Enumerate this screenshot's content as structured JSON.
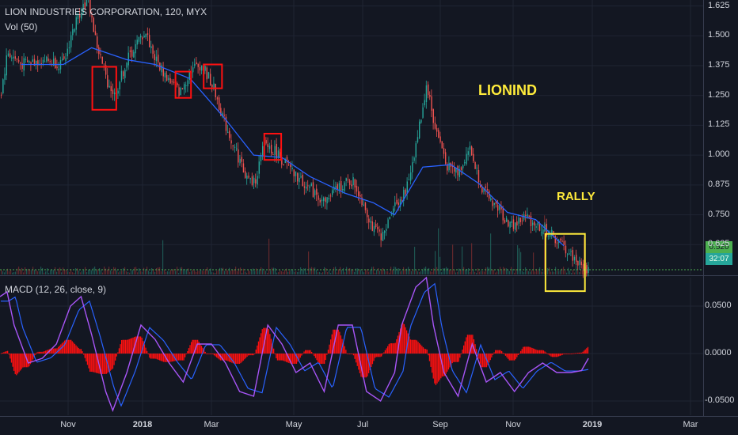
{
  "header": {
    "title": "LION INDUSTRIES CORPORATION, 120, MYX",
    "volume_label": "Vol (50)",
    "macd_label": "MACD (12, 26, close, 9)"
  },
  "annotations": {
    "ticker": "LIONIND",
    "rally": "RALLY"
  },
  "price_tags": {
    "last_price": "0.520",
    "countdown": "32:07"
  },
  "colors": {
    "background": "#131722",
    "up": "#26a69a",
    "down": "#ef5350",
    "ma": "#2962ff",
    "macd": "#a855f7",
    "signal": "#2962ff",
    "histogram": "#ff1010",
    "box_red": "#ff1010",
    "box_yellow": "#ffeb3b",
    "price_line": "#4caf50"
  },
  "chart_data": [
    {
      "type": "candlestick",
      "title": "LION INDUSTRIES CORPORATION, 120, MYX",
      "x_ticks": [
        "Nov",
        "2018",
        "Mar",
        "May",
        "Jul",
        "Sep",
        "Nov",
        "2019",
        "Mar"
      ],
      "y_ticks": [
        "1.625",
        "1.500",
        "1.375",
        "1.250",
        "1.125",
        "1.000",
        "0.875",
        "0.750",
        "0.625"
      ],
      "ylim": [
        0.5,
        1.65
      ],
      "last_price": 0.52,
      "price_path": [
        [
          0,
          1.25
        ],
        [
          0.01,
          1.43
        ],
        [
          0.03,
          1.38
        ],
        [
          0.06,
          1.4
        ],
        [
          0.09,
          1.38
        ],
        [
          0.1,
          1.5
        ],
        [
          0.115,
          1.62
        ],
        [
          0.125,
          1.65
        ],
        [
          0.135,
          1.48
        ],
        [
          0.15,
          1.32
        ],
        [
          0.162,
          1.25
        ],
        [
          0.18,
          1.4
        ],
        [
          0.205,
          1.52
        ],
        [
          0.22,
          1.4
        ],
        [
          0.235,
          1.33
        ],
        [
          0.255,
          1.26
        ],
        [
          0.27,
          1.36
        ],
        [
          0.285,
          1.38
        ],
        [
          0.3,
          1.3
        ],
        [
          0.32,
          1.12
        ],
        [
          0.35,
          0.9
        ],
        [
          0.36,
          0.88
        ],
        [
          0.375,
          1.05
        ],
        [
          0.395,
          1.0
        ],
        [
          0.415,
          0.92
        ],
        [
          0.44,
          0.86
        ],
        [
          0.46,
          0.8
        ],
        [
          0.48,
          0.87
        ],
        [
          0.5,
          0.89
        ],
        [
          0.515,
          0.8
        ],
        [
          0.53,
          0.68
        ],
        [
          0.545,
          0.66
        ],
        [
          0.555,
          0.78
        ],
        [
          0.575,
          0.84
        ],
        [
          0.59,
          1.05
        ],
        [
          0.605,
          1.3
        ],
        [
          0.615,
          1.13
        ],
        [
          0.635,
          0.95
        ],
        [
          0.65,
          0.93
        ],
        [
          0.665,
          1.03
        ],
        [
          0.685,
          0.85
        ],
        [
          0.705,
          0.78
        ],
        [
          0.725,
          0.7
        ],
        [
          0.745,
          0.74
        ],
        [
          0.765,
          0.7
        ],
        [
          0.78,
          0.67
        ],
        [
          0.81,
          0.58
        ],
        [
          0.825,
          0.53
        ],
        [
          0.835,
          0.52
        ]
      ],
      "ma_path": [
        [
          0.03,
          1.38
        ],
        [
          0.09,
          1.38
        ],
        [
          0.13,
          1.45
        ],
        [
          0.18,
          1.4
        ],
        [
          0.22,
          1.38
        ],
        [
          0.27,
          1.32
        ],
        [
          0.32,
          1.15
        ],
        [
          0.36,
          1.0
        ],
        [
          0.4,
          0.99
        ],
        [
          0.44,
          0.91
        ],
        [
          0.49,
          0.84
        ],
        [
          0.53,
          0.8
        ],
        [
          0.56,
          0.75
        ],
        [
          0.6,
          0.95
        ],
        [
          0.64,
          0.96
        ],
        [
          0.68,
          0.88
        ],
        [
          0.72,
          0.76
        ],
        [
          0.76,
          0.73
        ],
        [
          0.8,
          0.62
        ]
      ],
      "red_boxes": [
        {
          "x": [
            0.131,
            0.165
          ],
          "y": [
            1.19,
            1.37
          ]
        },
        {
          "x": [
            0.249,
            0.271
          ],
          "y": [
            1.24,
            1.35
          ]
        },
        {
          "x": [
            0.289,
            0.315
          ],
          "y": [
            1.28,
            1.38
          ]
        },
        {
          "x": [
            0.375,
            0.399
          ],
          "y": [
            0.98,
            1.09
          ]
        },
        {
          "x": [
            0.774,
            0.83
          ],
          "y": [
            0.43,
            0.67
          ]
        }
      ]
    },
    {
      "type": "bar",
      "title": "Vol (50)",
      "note": "volume histogram along bottom of price pane"
    },
    {
      "type": "line",
      "title": "MACD (12, 26, close, 9)",
      "y_ticks": [
        "0.0500",
        "0.0000",
        "-0.0500"
      ],
      "ylim": [
        -0.065,
        0.08
      ],
      "macd_path": [
        [
          0,
          0.06
        ],
        [
          0.01,
          0.065
        ],
        [
          0.02,
          0.03
        ],
        [
          0.04,
          -0.01
        ],
        [
          0.06,
          -0.005
        ],
        [
          0.08,
          0.01
        ],
        [
          0.1,
          0.05
        ],
        [
          0.115,
          0.06
        ],
        [
          0.13,
          0.02
        ],
        [
          0.15,
          -0.04
        ],
        [
          0.16,
          -0.06
        ],
        [
          0.18,
          -0.02
        ],
        [
          0.2,
          0.03
        ],
        [
          0.22,
          0.015
        ],
        [
          0.24,
          -0.01
        ],
        [
          0.26,
          -0.03
        ],
        [
          0.28,
          0.01
        ],
        [
          0.3,
          0.01
        ],
        [
          0.32,
          -0.01
        ],
        [
          0.34,
          -0.04
        ],
        [
          0.36,
          -0.045
        ],
        [
          0.38,
          0.03
        ],
        [
          0.4,
          0.01
        ],
        [
          0.42,
          -0.02
        ],
        [
          0.44,
          -0.01
        ],
        [
          0.46,
          -0.04
        ],
        [
          0.48,
          0.03
        ],
        [
          0.5,
          0.03
        ],
        [
          0.52,
          -0.04
        ],
        [
          0.54,
          -0.05
        ],
        [
          0.56,
          -0.02
        ],
        [
          0.57,
          0.03
        ],
        [
          0.59,
          0.07
        ],
        [
          0.605,
          0.08
        ],
        [
          0.615,
          0.03
        ],
        [
          0.63,
          -0.02
        ],
        [
          0.65,
          -0.045
        ],
        [
          0.67,
          0.01
        ],
        [
          0.69,
          -0.03
        ],
        [
          0.71,
          -0.02
        ],
        [
          0.73,
          -0.04
        ],
        [
          0.75,
          -0.02
        ],
        [
          0.77,
          -0.01
        ],
        [
          0.79,
          -0.02
        ],
        [
          0.81,
          -0.02
        ],
        [
          0.825,
          -0.018
        ],
        [
          0.835,
          -0.005
        ]
      ]
    }
  ]
}
